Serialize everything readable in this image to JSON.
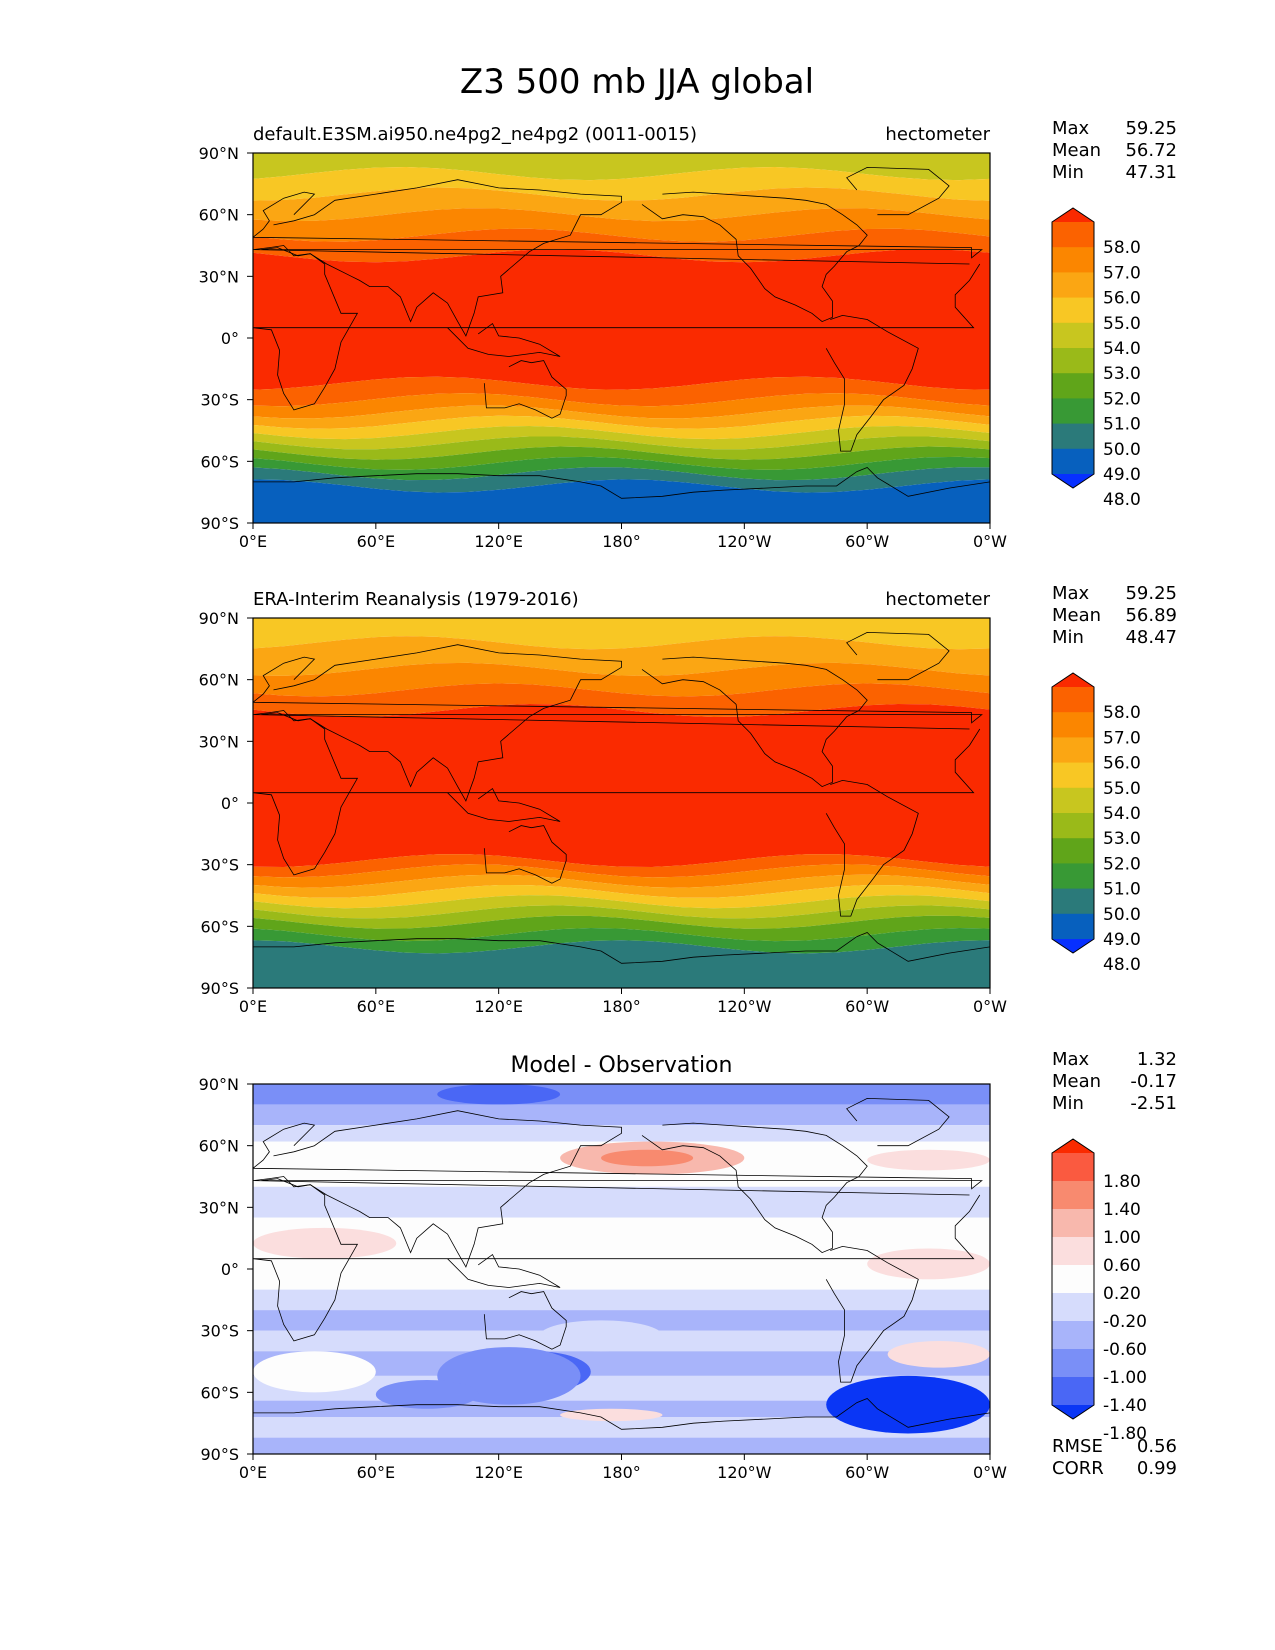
{
  "figure_title": "Z3 500 mb JJA global",
  "chart_data": [
    {
      "type": "heatmap",
      "title_left": "default.E3SM.ai950.ne4pg2_ne4pg2 (0011-0015)",
      "title_right": "hectometer",
      "x_ticks": [
        "0°E",
        "60°E",
        "120°E",
        "180°",
        "120°W",
        "60°W",
        "0°W"
      ],
      "y_ticks": [
        "90°N",
        "60°N",
        "30°N",
        "0°",
        "30°S",
        "60°S",
        "90°S"
      ],
      "xlim": [
        0,
        360
      ],
      "ylim": [
        -90,
        90
      ],
      "stats": [
        {
          "label": "Max",
          "value": "59.25"
        },
        {
          "label": "Mean",
          "value": "56.72"
        },
        {
          "label": "Min",
          "value": "47.31"
        }
      ],
      "colorbar": {
        "labels": [
          "58.0",
          "57.0",
          "56.0",
          "55.0",
          "54.0",
          "53.0",
          "52.0",
          "51.0",
          "50.0",
          "49.0",
          "48.0"
        ],
        "colors": [
          "#fa2a00",
          "#fb6200",
          "#fb8600",
          "#fba613",
          "#f8c724",
          "#c8c61f",
          "#9aba19",
          "#60a51a",
          "#389935",
          "#2b7a7a",
          "#0760be",
          "#0730ff"
        ],
        "extend": "both"
      },
      "zonal_profile": [
        {
          "lat_top": 90,
          "lat_bottom": 80,
          "value": 53.5
        },
        {
          "lat_top": 80,
          "lat_bottom": 70,
          "value": 54.5
        },
        {
          "lat_top": 70,
          "lat_bottom": 60,
          "value": 55.5
        },
        {
          "lat_top": 60,
          "lat_bottom": 50,
          "value": 56.5
        },
        {
          "lat_top": 50,
          "lat_bottom": 40,
          "value": 57.5
        },
        {
          "lat_top": 40,
          "lat_bottom": -22,
          "value": 58.5
        },
        {
          "lat_top": -22,
          "lat_bottom": -30,
          "value": 57.5
        },
        {
          "lat_top": -30,
          "lat_bottom": -36,
          "value": 56.5
        },
        {
          "lat_top": -36,
          "lat_bottom": -41,
          "value": 55.5
        },
        {
          "lat_top": -41,
          "lat_bottom": -46,
          "value": 54.5
        },
        {
          "lat_top": -46,
          "lat_bottom": -51,
          "value": 53.5
        },
        {
          "lat_top": -51,
          "lat_bottom": -56,
          "value": 52.5
        },
        {
          "lat_top": -56,
          "lat_bottom": -61,
          "value": 51.5
        },
        {
          "lat_top": -61,
          "lat_bottom": -66,
          "value": 50.5
        },
        {
          "lat_top": -66,
          "lat_bottom": -72,
          "value": 49.5
        },
        {
          "lat_top": -72,
          "lat_bottom": -90,
          "value": 48.5
        }
      ]
    },
    {
      "type": "heatmap",
      "title_left": "ERA-Interim Reanalysis (1979-2016)",
      "title_right": "hectometer",
      "x_ticks": [
        "0°E",
        "60°E",
        "120°E",
        "180°",
        "120°W",
        "60°W",
        "0°W"
      ],
      "y_ticks": [
        "90°N",
        "60°N",
        "30°N",
        "0°",
        "30°S",
        "60°S",
        "90°S"
      ],
      "xlim": [
        0,
        360
      ],
      "ylim": [
        -90,
        90
      ],
      "stats": [
        {
          "label": "Max",
          "value": "59.25"
        },
        {
          "label": "Mean",
          "value": "56.89"
        },
        {
          "label": "Min",
          "value": "48.47"
        }
      ],
      "colorbar": {
        "labels": [
          "58.0",
          "57.0",
          "56.0",
          "55.0",
          "54.0",
          "53.0",
          "52.0",
          "51.0",
          "50.0",
          "49.0",
          "48.0"
        ],
        "colors": [
          "#fa2a00",
          "#fb6200",
          "#fb8600",
          "#fba613",
          "#f8c724",
          "#c8c61f",
          "#9aba19",
          "#60a51a",
          "#389935",
          "#2b7a7a",
          "#0760be",
          "#0730ff"
        ],
        "extend": "both"
      },
      "zonal_profile": [
        {
          "lat_top": 90,
          "lat_bottom": 78,
          "value": 54.5
        },
        {
          "lat_top": 78,
          "lat_bottom": 65,
          "value": 55.5
        },
        {
          "lat_top": 65,
          "lat_bottom": 55,
          "value": 56.5
        },
        {
          "lat_top": 55,
          "lat_bottom": 45,
          "value": 57.5
        },
        {
          "lat_top": 45,
          "lat_bottom": -28,
          "value": 58.5
        },
        {
          "lat_top": -28,
          "lat_bottom": -33,
          "value": 57.5
        },
        {
          "lat_top": -33,
          "lat_bottom": -38,
          "value": 56.5
        },
        {
          "lat_top": -38,
          "lat_bottom": -43,
          "value": 55.5
        },
        {
          "lat_top": -43,
          "lat_bottom": -48,
          "value": 54.5
        },
        {
          "lat_top": -48,
          "lat_bottom": -53,
          "value": 53.5
        },
        {
          "lat_top": -53,
          "lat_bottom": -58,
          "value": 52.5
        },
        {
          "lat_top": -58,
          "lat_bottom": -64,
          "value": 51.5
        },
        {
          "lat_top": -64,
          "lat_bottom": -70,
          "value": 50.5
        },
        {
          "lat_top": -70,
          "lat_bottom": -90,
          "value": 49.5
        }
      ]
    },
    {
      "type": "heatmap",
      "title_center": "Model - Observation",
      "x_ticks": [
        "0°E",
        "60°E",
        "120°E",
        "180°",
        "120°W",
        "60°W",
        "0°W"
      ],
      "y_ticks": [
        "90°N",
        "60°N",
        "30°N",
        "0°",
        "30°S",
        "60°S",
        "90°S"
      ],
      "xlim": [
        0,
        360
      ],
      "ylim": [
        -90,
        90
      ],
      "stats": [
        {
          "label": "Max",
          "value": "1.32"
        },
        {
          "label": "Mean",
          "value": "-0.17"
        },
        {
          "label": "Min",
          "value": "-2.51"
        }
      ],
      "metrics": [
        {
          "label": "RMSE",
          "value": "0.56"
        },
        {
          "label": "CORR",
          "value": "0.99"
        }
      ],
      "colorbar": {
        "labels": [
          "1.80",
          "1.40",
          "1.00",
          "0.60",
          "0.20",
          "-0.20",
          "-0.60",
          "-1.00",
          "-1.40",
          "-1.80"
        ],
        "colors": [
          "#fa2a00",
          "#fa5a40",
          "#f88a6f",
          "#f8b8ad",
          "#fbdede",
          "#fdfdfd",
          "#d6dcfc",
          "#a8b4fa",
          "#7a8ff7",
          "#4a67f5",
          "#0a36f5"
        ],
        "extend": "both"
      },
      "zonal_profile": [
        {
          "lat_top": 90,
          "lat_bottom": 80,
          "value": -1.2
        },
        {
          "lat_top": 80,
          "lat_bottom": 70,
          "value": -0.8
        },
        {
          "lat_top": 70,
          "lat_bottom": 62,
          "value": -0.4
        },
        {
          "lat_top": 62,
          "lat_bottom": 40,
          "value": 0.0
        },
        {
          "lat_top": 40,
          "lat_bottom": 25,
          "value": -0.4
        },
        {
          "lat_top": 25,
          "lat_bottom": -10,
          "value": 0.0
        },
        {
          "lat_top": -10,
          "lat_bottom": -20,
          "value": -0.4
        },
        {
          "lat_top": -20,
          "lat_bottom": -30,
          "value": -0.8
        },
        {
          "lat_top": -30,
          "lat_bottom": -40,
          "value": -0.4
        },
        {
          "lat_top": -40,
          "lat_bottom": -52,
          "value": -0.8
        },
        {
          "lat_top": -52,
          "lat_bottom": -64,
          "value": -0.4
        },
        {
          "lat_top": -64,
          "lat_bottom": -72,
          "value": -0.8
        },
        {
          "lat_top": -72,
          "lat_bottom": -82,
          "value": -0.4
        },
        {
          "lat_top": -82,
          "lat_bottom": -90,
          "value": -0.8
        }
      ],
      "anomalies": [
        {
          "lon": [
            280,
            360
          ],
          "lat": [
            -80,
            -52
          ],
          "value": -2.0
        },
        {
          "lon": [
            110,
            165
          ],
          "lat": [
            -60,
            -40
          ],
          "value": -1.6
        },
        {
          "lon": [
            90,
            160
          ],
          "lat": [
            -66,
            -38
          ],
          "value": -1.2
        },
        {
          "lon": [
            60,
            110
          ],
          "lat": [
            -68,
            -54
          ],
          "value": -1.2
        },
        {
          "lon": [
            90,
            150
          ],
          "lat": [
            90,
            80
          ],
          "value": -1.6
        },
        {
          "lon": [
            150,
            240
          ],
          "lat": [
            62,
            46
          ],
          "value": 0.8
        },
        {
          "lon": [
            170,
            215
          ],
          "lat": [
            58,
            50
          ],
          "value": 1.2
        },
        {
          "lon": [
            300,
            360
          ],
          "lat": [
            58,
            48
          ],
          "value": 0.4
        },
        {
          "lon": [
            0,
            70
          ],
          "lat": [
            20,
            5
          ],
          "value": 0.4
        },
        {
          "lon": [
            300,
            360
          ],
          "lat": [
            10,
            -5
          ],
          "value": 0.4
        },
        {
          "lon": [
            310,
            360
          ],
          "lat": [
            -35,
            -48
          ],
          "value": 0.4
        },
        {
          "lon": [
            150,
            200
          ],
          "lat": [
            -68,
            -74
          ],
          "value": 0.4
        },
        {
          "lon": [
            0,
            60
          ],
          "lat": [
            -40,
            -60
          ],
          "value": 0.0
        },
        {
          "lon": [
            140,
            200
          ],
          "lat": [
            -25,
            -40
          ],
          "value": -0.4
        }
      ]
    }
  ]
}
